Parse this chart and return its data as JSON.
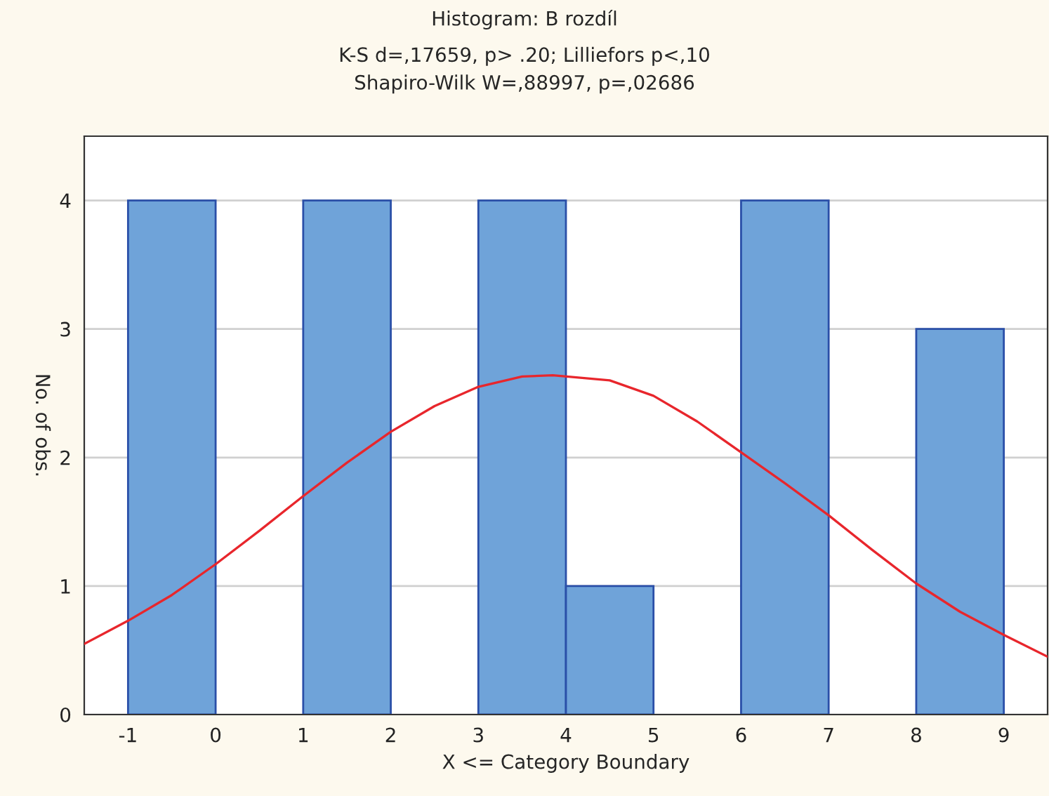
{
  "chart_data": {
    "type": "histogram",
    "title": "Histogram: B rozdíl",
    "subtitle": "K-S d=,17659, p> .20; Lilliefors p<,10\nShapiro-Wilk W=,88997, p=,02686",
    "xlabel": "X <= Category Boundary",
    "ylabel": "No. of obs.",
    "bins": [
      -1,
      0,
      1,
      2,
      3,
      4,
      5,
      6,
      7,
      8,
      9
    ],
    "values": [
      4,
      0,
      4,
      0,
      4,
      1,
      0,
      4,
      0,
      3
    ],
    "color": "#6fa3d9",
    "series": [
      {
        "type": "line",
        "color": "#e8262c",
        "x": [
          -1.5,
          -1,
          -0.5,
          0,
          0.5,
          1,
          1.5,
          2,
          2.5,
          3,
          3.5,
          3.85,
          4.5,
          5,
          5.5,
          6,
          6.5,
          7,
          7.5,
          8,
          8.5,
          9,
          9.5
        ],
        "values": [
          0.55,
          0.73,
          0.93,
          1.17,
          1.43,
          1.7,
          1.96,
          2.2,
          2.4,
          2.55,
          2.63,
          2.64,
          2.6,
          2.48,
          2.28,
          2.04,
          1.8,
          1.55,
          1.28,
          1.02,
          0.8,
          0.62,
          0.45
        ]
      }
    ],
    "xlim": [
      -1.5,
      9.5
    ],
    "xticks": [
      -1,
      0,
      1,
      2,
      3,
      4,
      5,
      6,
      7,
      8,
      9
    ],
    "ylim": [
      0,
      4.5
    ],
    "yticks": [
      0,
      1,
      2,
      3,
      4
    ],
    "grid": "y",
    "legend": false
  }
}
